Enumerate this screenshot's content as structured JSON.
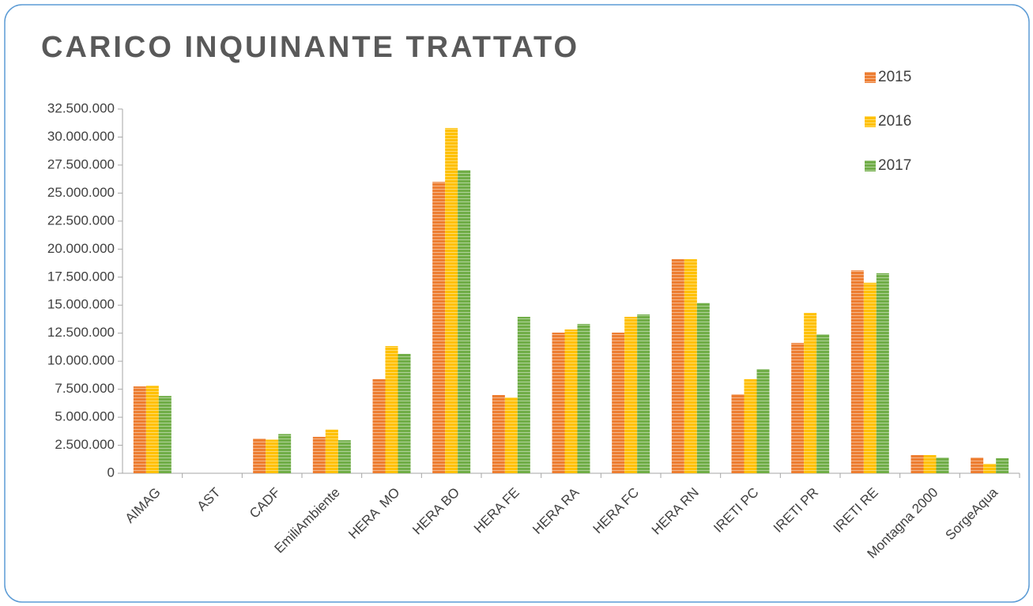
{
  "chart_data": {
    "type": "bar",
    "title": "CARICO INQUINANTE TRATTATO",
    "categories": [
      "AIMAG",
      "AST",
      "CADF",
      "EmiliAmbiente",
      "HERA  MO",
      "HERA BO",
      "HERA FE",
      "HERA RA",
      "HERA FC",
      "HERA RN",
      "IRETI PC",
      "IRETI PR",
      "IRETI RE",
      "Montagna 2000",
      "SorgeAqua"
    ],
    "series": [
      {
        "name": "2015",
        "color": "#ed7d31",
        "values": [
          7750000,
          0,
          3100000,
          3250000,
          8400000,
          26000000,
          6980000,
          12550000,
          12550000,
          19100000,
          7050000,
          11630000,
          18100000,
          1620000,
          1410000
        ]
      },
      {
        "name": "2016",
        "color": "#ffc000",
        "values": [
          7800000,
          0,
          3000000,
          3900000,
          11350000,
          30800000,
          6770000,
          12830000,
          13960000,
          19100000,
          8400000,
          14300000,
          17000000,
          1620000,
          850000
        ]
      },
      {
        "name": "2017",
        "color": "#70ad47",
        "values": [
          6900000,
          0,
          3500000,
          2950000,
          10650000,
          27050000,
          13960000,
          13320000,
          14170000,
          15200000,
          9300000,
          12400000,
          17850000,
          1410000,
          1340000
        ]
      }
    ],
    "ylim": [
      0,
      32500000
    ],
    "yticks": [
      0,
      {
        "value": 2500000,
        "label": "2.500.000"
      },
      {
        "value": 5000000,
        "label": "5.000.000"
      },
      {
        "value": 7500000,
        "label": "7.500.000"
      },
      {
        "value": 10000000,
        "label": "10.000.000"
      },
      {
        "value": 12500000,
        "label": "12.500.000"
      },
      {
        "value": 15000000,
        "label": "15.000.000"
      },
      {
        "value": 17500000,
        "label": "17.500.000"
      },
      {
        "value": 20000000,
        "label": "20.000.000"
      },
      {
        "value": 22500000,
        "label": "22.500.000"
      },
      {
        "value": 25000000,
        "label": "25.000.000"
      },
      {
        "value": 27500000,
        "label": "27.500.000"
      },
      {
        "value": 30000000,
        "label": "30.000.000"
      },
      {
        "value": 32500000,
        "label": "32.500.000"
      }
    ],
    "legend": "top-right",
    "grid": false
  }
}
